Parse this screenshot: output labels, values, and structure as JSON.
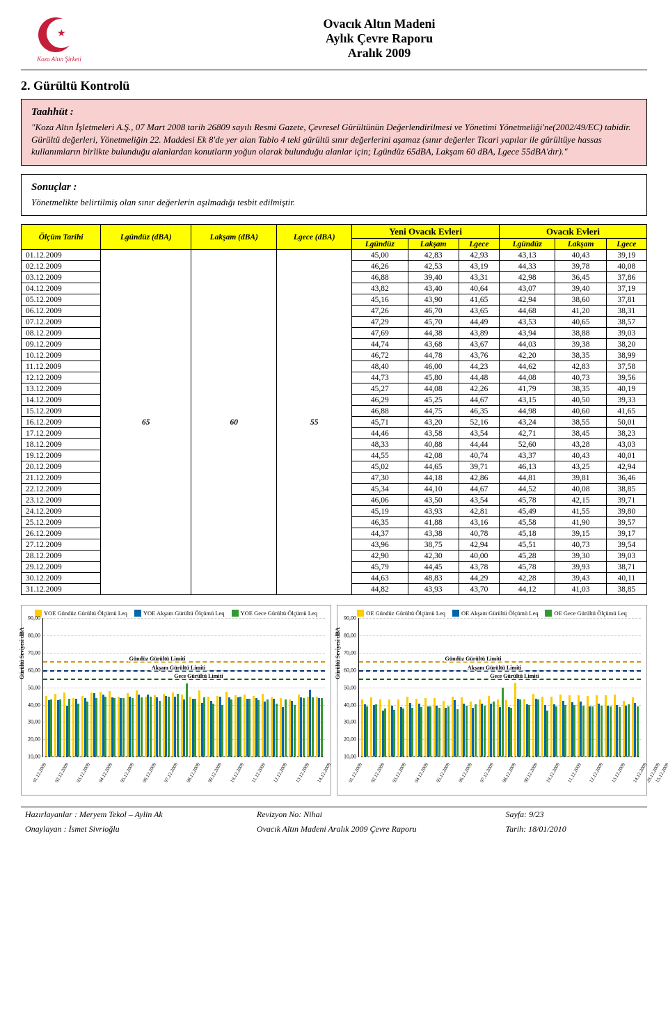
{
  "logo_text": "Koza Altın Şirketi",
  "header": {
    "line1": "Ovacık Altın Madeni",
    "line2": "Aylık Çevre Raporu",
    "line3": "Aralık 2009"
  },
  "section_title": "2. Gürültü Kontrolü",
  "taahhut": {
    "label": "Taahhüt :",
    "text": "\"Koza Altın İşletmeleri A.Ş., 07 Mart 2008 tarih 26809 sayılı Resmi Gazete, Çevresel Gürültünün Değerlendirilmesi ve Yönetimi Yönetmeliği'ne(2002/49/EC) tabidir. Gürültü değerleri, Yönetmeliğin 22. Maddesi Ek 8'de yer alan Tablo 4 teki gürültü sınır değerlerini aşamaz (sınır değerler Ticari yapılar ile gürültüye hassas kullanımların birlikte bulunduğu alanlardan konutların yoğun olarak bulunduğu alanlar için; Lgündüz 65dBA, Lakşam 60 dBA, Lgece 55dBA'dır).\""
  },
  "sonuclar": {
    "label": "Sonuçlar :",
    "text": "Yönetmelikte belirtilmiş olan sınır değerlerin aşılmadığı tesbit edilmiştir."
  },
  "table": {
    "col_olcum": "Ölçüm Tarihi",
    "col_lgunduz": "Lgündüz (dBA)",
    "col_laksam": "Lakşam (dBA)",
    "col_lgece": "Lgece (dBA)",
    "group_yeni": "Yeni Ovacık Evleri",
    "group_ovacik": "Ovacık Evleri",
    "sub_lgunduz": "Lgündüz",
    "sub_laksam": "Lakşam",
    "sub_lgece": "Lgece",
    "limit_gunduz": "65",
    "limit_aksam": "60",
    "limit_gece": "55",
    "rows": [
      {
        "d": "01.12.2009",
        "y": [
          "45,00",
          "42,83",
          "42,93"
        ],
        "o": [
          "43,13",
          "40,43",
          "39,19"
        ]
      },
      {
        "d": "02.12.2009",
        "y": [
          "46,26",
          "42,53",
          "43,19"
        ],
        "o": [
          "44,33",
          "39,78",
          "40,08"
        ]
      },
      {
        "d": "03.12.2009",
        "y": [
          "46,88",
          "39,40",
          "43,31"
        ],
        "o": [
          "42,98",
          "36,45",
          "37,86"
        ]
      },
      {
        "d": "04.12.2009",
        "y": [
          "43,82",
          "43,40",
          "40,64"
        ],
        "o": [
          "43,07",
          "39,40",
          "37,19"
        ]
      },
      {
        "d": "05.12.2009",
        "y": [
          "45,16",
          "43,90",
          "41,65"
        ],
        "o": [
          "42,94",
          "38,60",
          "37,81"
        ]
      },
      {
        "d": "06.12.2009",
        "y": [
          "47,26",
          "46,70",
          "43,65"
        ],
        "o": [
          "44,68",
          "41,20",
          "38,31"
        ]
      },
      {
        "d": "07.12.2009",
        "y": [
          "47,29",
          "45,70",
          "44,49"
        ],
        "o": [
          "43,53",
          "40,65",
          "38,57"
        ]
      },
      {
        "d": "08.12.2009",
        "y": [
          "47,69",
          "44,38",
          "43,89"
        ],
        "o": [
          "43,94",
          "38,88",
          "39,03"
        ]
      },
      {
        "d": "09.12.2009",
        "y": [
          "44,74",
          "43,68",
          "43,67"
        ],
        "o": [
          "44,03",
          "39,38",
          "38,20"
        ]
      },
      {
        "d": "10.12.2009",
        "y": [
          "46,72",
          "44,78",
          "43,76"
        ],
        "o": [
          "42,20",
          "38,35",
          "38,99"
        ]
      },
      {
        "d": "11.12.2009",
        "y": [
          "48,40",
          "46,00",
          "44,23"
        ],
        "o": [
          "44,62",
          "42,83",
          "37,58"
        ]
      },
      {
        "d": "12.12.2009",
        "y": [
          "44,73",
          "45,80",
          "44,48"
        ],
        "o": [
          "44,08",
          "40,73",
          "39,56"
        ]
      },
      {
        "d": "13.12.2009",
        "y": [
          "45,27",
          "44,08",
          "42,26"
        ],
        "o": [
          "41,79",
          "38,35",
          "40,19"
        ]
      },
      {
        "d": "14.12.2009",
        "y": [
          "46,29",
          "45,25",
          "44,67"
        ],
        "o": [
          "43,15",
          "40,50",
          "39,33"
        ]
      },
      {
        "d": "15.12.2009",
        "y": [
          "46,88",
          "44,75",
          "46,35"
        ],
        "o": [
          "44,98",
          "40,60",
          "41,65"
        ]
      },
      {
        "d": "16.12.2009",
        "y": [
          "45,71",
          "43,20",
          "52,16"
        ],
        "o": [
          "43,24",
          "38,55",
          "50,01"
        ]
      },
      {
        "d": "17.12.2009",
        "y": [
          "44,46",
          "43,58",
          "43,54"
        ],
        "o": [
          "42,71",
          "38,45",
          "38,23"
        ]
      },
      {
        "d": "18.12.2009",
        "y": [
          "48,33",
          "40,88",
          "44,44"
        ],
        "o": [
          "52,60",
          "43,28",
          "43,03"
        ]
      },
      {
        "d": "19.12.2009",
        "y": [
          "44,55",
          "42,08",
          "40,74"
        ],
        "o": [
          "43,37",
          "40,43",
          "40,01"
        ]
      },
      {
        "d": "20.12.2009",
        "y": [
          "45,02",
          "44,65",
          "39,71"
        ],
        "o": [
          "46,13",
          "43,25",
          "42,94"
        ]
      },
      {
        "d": "21.12.2009",
        "y": [
          "47,30",
          "44,18",
          "42,86"
        ],
        "o": [
          "44,81",
          "39,81",
          "36,46"
        ]
      },
      {
        "d": "22.12.2009",
        "y": [
          "45,34",
          "44,10",
          "44,67"
        ],
        "o": [
          "44,52",
          "40,08",
          "38,85"
        ]
      },
      {
        "d": "23.12.2009",
        "y": [
          "46,06",
          "43,50",
          "43,54"
        ],
        "o": [
          "45,78",
          "42,15",
          "39,71"
        ]
      },
      {
        "d": "24.12.2009",
        "y": [
          "45,19",
          "43,93",
          "42,81"
        ],
        "o": [
          "45,49",
          "41,55",
          "39,80"
        ]
      },
      {
        "d": "25.12.2009",
        "y": [
          "46,35",
          "41,88",
          "43,16"
        ],
        "o": [
          "45,58",
          "41,90",
          "39,57"
        ]
      },
      {
        "d": "26.12.2009",
        "y": [
          "44,37",
          "43,38",
          "40,78"
        ],
        "o": [
          "45,18",
          "39,15",
          "39,17"
        ]
      },
      {
        "d": "27.12.2009",
        "y": [
          "43,96",
          "38,75",
          "42,94"
        ],
        "o": [
          "45,51",
          "40,73",
          "39,54"
        ]
      },
      {
        "d": "28.12.2009",
        "y": [
          "42,90",
          "42,30",
          "40,00"
        ],
        "o": [
          "45,28",
          "39,30",
          "39,03"
        ]
      },
      {
        "d": "29.12.2009",
        "y": [
          "45,79",
          "44,45",
          "43,78"
        ],
        "o": [
          "45,78",
          "39,93",
          "38,71"
        ]
      },
      {
        "d": "30.12.2009",
        "y": [
          "44,63",
          "48,83",
          "44,29"
        ],
        "o": [
          "42,28",
          "39,43",
          "40,11"
        ]
      },
      {
        "d": "31.12.2009",
        "y": [
          "44,82",
          "43,93",
          "43,70"
        ],
        "o": [
          "44,12",
          "41,03",
          "38,85"
        ]
      }
    ]
  },
  "charts": {
    "ylabel": "Gürültü Seviyesi dBA",
    "ymin": 10,
    "ymax": 90,
    "ystep": 10,
    "colors": {
      "gunduz": "#ffcc00",
      "aksam": "#0066aa",
      "gece": "#339933"
    },
    "limit_colors": {
      "gunduz": "#cc9900",
      "aksam": "#003366",
      "gece": "#006600"
    },
    "limits": {
      "gunduz": 65,
      "aksam": 60,
      "gece": 55
    },
    "limit_labels": {
      "gunduz": "Gündüz Gürültü Limiti",
      "aksam": "Akşam Gürültü Limiti",
      "gece": "Gece Gürültü Limiti"
    },
    "left": {
      "legend": [
        "YOE Gündüz Gürültü Ölçümü Leq",
        "YOE Akşam Gürültü Ölçümü Leq",
        "YOE Gece Gürültü Ölçümü Leq"
      ]
    },
    "right": {
      "legend": [
        "OE Gündüz Gürültü Ölçümü Leq",
        "OE Akşam Gürültü Ölçümü Leq",
        "OE Gece Gürültü Ölçümü Leq"
      ]
    }
  },
  "footer": {
    "r1c1": "Hazırlayanlar : Meryem Tekol – Aylin Ak",
    "r1c2": "Revizyon No: Nihai",
    "r1c3": "Sayfa: 9/23",
    "r2c1": "Onaylayan : İsmet Sivrioğlu",
    "r2c2": "Ovacık Altın Madeni Aralık 2009 Çevre Raporu",
    "r2c3": "Tarih: 18/01/2010"
  }
}
